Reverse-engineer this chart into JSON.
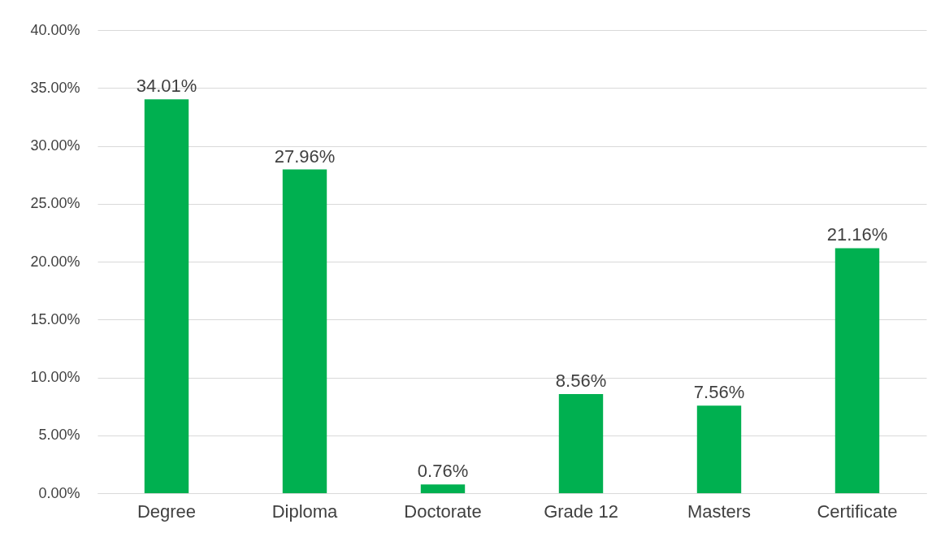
{
  "chart_data": {
    "type": "bar",
    "categories": [
      "Degree",
      "Diploma",
      "Doctorate",
      "Grade 12",
      "Masters",
      "Certificate"
    ],
    "values": [
      34.01,
      27.96,
      0.76,
      8.56,
      7.56,
      21.16
    ],
    "value_labels": [
      "34.01%",
      "27.96%",
      "0.76%",
      "8.56%",
      "7.56%",
      "21.16%"
    ],
    "color": "#00b050",
    "ylim": [
      0,
      40
    ],
    "yticks": [
      {
        "value": 0,
        "label": "0.00%"
      },
      {
        "value": 5,
        "label": "5.00%"
      },
      {
        "value": 10,
        "label": "10.00%"
      },
      {
        "value": 15,
        "label": "15.00%"
      },
      {
        "value": 20,
        "label": "20.00%"
      },
      {
        "value": 25,
        "label": "25.00%"
      },
      {
        "value": 30,
        "label": "30.00%"
      },
      {
        "value": 35,
        "label": "35.00%"
      },
      {
        "value": 40,
        "label": "40.00%"
      }
    ],
    "grid": "y"
  }
}
